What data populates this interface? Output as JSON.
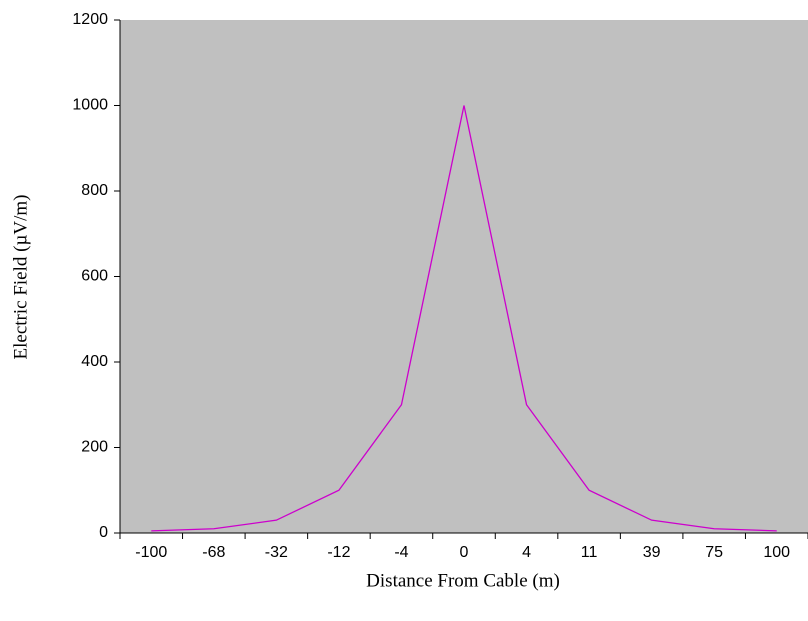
{
  "chart_data": {
    "type": "line",
    "x_label": "Distance From Cable (m)",
    "y_label": "Electric Field (µV/m)",
    "categories": [
      "-100",
      "-68",
      "-32",
      "-12",
      "-4",
      "0",
      "4",
      "11",
      "39",
      "75",
      "100"
    ],
    "series": [
      {
        "name": "Electric Field",
        "color": "#cc00cc",
        "values": [
          5,
          10,
          30,
          100,
          300,
          1000,
          300,
          100,
          30,
          10,
          5
        ]
      }
    ],
    "ylim": [
      0,
      1200
    ],
    "yticks": [
      0,
      200,
      400,
      600,
      800,
      1000,
      1200
    ],
    "background": "#c0c0c0"
  }
}
